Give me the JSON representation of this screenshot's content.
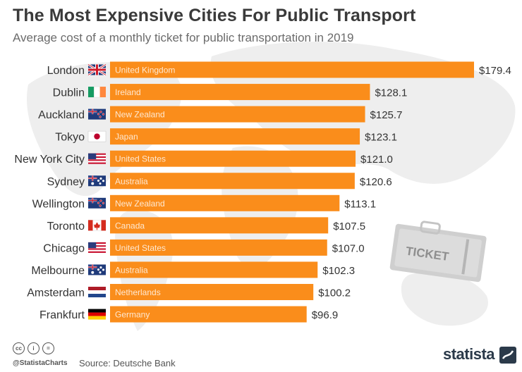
{
  "header": {
    "title": "The Most Expensive Cities For Public Transport",
    "subtitle": "Average cost of a monthly ticket for public transportation in 2019"
  },
  "chart_data": {
    "type": "bar",
    "orientation": "horizontal",
    "title": "The Most Expensive Cities For Public Transport",
    "subtitle": "Average cost of a monthly ticket for public transportation in 2019",
    "xlabel": "",
    "ylabel": "",
    "unit": "$",
    "categories": [
      "London",
      "Dublin",
      "Auckland",
      "Tokyo",
      "New York City",
      "Sydney",
      "Wellington",
      "Toronto",
      "Chicago",
      "Melbourne",
      "Amsterdam",
      "Frankfurt"
    ],
    "countries": [
      "United Kingdom",
      "Ireland",
      "New Zealand",
      "Japan",
      "United States",
      "Australia",
      "New Zealand",
      "Canada",
      "United States",
      "Australia",
      "Netherlands",
      "Germany"
    ],
    "flags": [
      "uk-flag",
      "ireland-flag",
      "new-zealand-flag",
      "japan-flag",
      "usa-flag",
      "australia-flag",
      "new-zealand-flag",
      "canada-flag",
      "usa-flag",
      "australia-flag",
      "netherlands-flag",
      "germany-flag"
    ],
    "values": [
      179.4,
      128.1,
      125.7,
      123.1,
      121.0,
      120.6,
      113.1,
      107.5,
      107.0,
      102.3,
      100.2,
      96.9
    ],
    "value_labels": [
      "$179.4",
      "$128.1",
      "$125.7",
      "$123.1",
      "$121.0",
      "$120.6",
      "$113.1",
      "$107.5",
      "$107.0",
      "$102.3",
      "$100.2",
      "$96.9"
    ],
    "xlim": [
      0,
      179.4
    ],
    "bar_color": "#fa8d1b",
    "grid": false,
    "legend": "none"
  },
  "decoration": {
    "ticket_text": "TICKET"
  },
  "footer": {
    "license_icons": [
      "cc",
      "by",
      "nd"
    ],
    "license_labels": [
      "cc",
      "i",
      "="
    ],
    "handle": "@StatistaCharts",
    "source": "Source: Deutsche Bank",
    "logo_text": "statista"
  }
}
